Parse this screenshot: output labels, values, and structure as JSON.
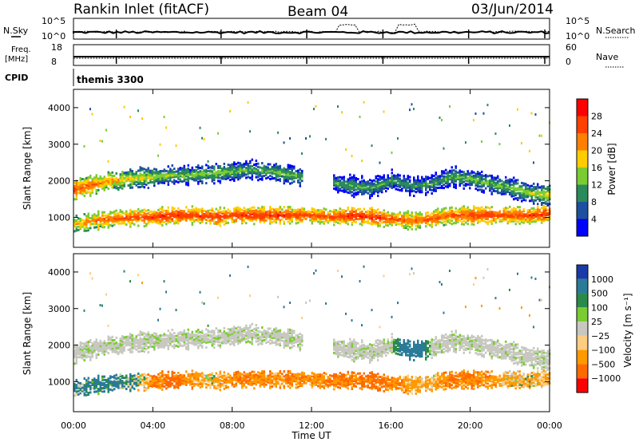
{
  "header": {
    "title": "Rankin Inlet (fitACF)",
    "beam": "Beam 04",
    "date": "03/Jun/2014"
  },
  "strip_top": {
    "left_label": "N.Sky",
    "right_label": "N.Search",
    "left_ticks": [
      "10^5",
      "10^0"
    ],
    "right_ticks": [
      "10^5",
      "10^0"
    ]
  },
  "strip_mid": {
    "left_label_1": "Freq.",
    "left_label_2": "[MHz]",
    "right_label": "Nave",
    "left_ticks": [
      "18",
      "8"
    ],
    "right_ticks": [
      "60",
      "0"
    ]
  },
  "cpid": {
    "label": "CPID",
    "value": "themis 3300"
  },
  "colors": {
    "power_scale": [
      "#0000ff",
      "#1e50a0",
      "#2a8a5a",
      "#7acc33",
      "#ffcc00",
      "#ff8000",
      "#ff4000",
      "#ff0000"
    ],
    "velocity_scale": [
      "#1a3aa8",
      "#2a7a98",
      "#2a8a4a",
      "#7acc33",
      "#c8c8c0",
      "#ffcc80",
      "#ff9900",
      "#ff6a00",
      "#ff0000"
    ]
  },
  "chart_data": [
    {
      "type": "heatmap",
      "panel": "power",
      "ylabel": "Slant Range [km]",
      "yticks": [
        "1000",
        "2000",
        "3000",
        "4000"
      ],
      "ylim": [
        180,
        4500
      ],
      "xlim_hours": [
        0,
        24
      ],
      "colorbar": {
        "label": "Power [dB]",
        "ticks": [
          "4",
          "8",
          "12",
          "16",
          "20",
          "24",
          "28"
        ],
        "range": [
          0,
          32
        ]
      },
      "bands": [
        {
          "name": "upper",
          "center_km": [
            1750,
            1900,
            2000,
            2050,
            2100,
            2150,
            2150,
            2200,
            2250,
            2300,
            2250,
            2150,
            2000,
            1950,
            1850,
            1800,
            2000,
            1850,
            1900,
            2100,
            2050,
            1900,
            1800,
            1650,
            1600
          ],
          "power_db": [
            26,
            24,
            21,
            18,
            16,
            15,
            14,
            15,
            14,
            13,
            14,
            14,
            12,
            12,
            13,
            12,
            12,
            11,
            12,
            13,
            14,
            13,
            14,
            16,
            18
          ]
        },
        {
          "name": "lower",
          "center_km": [
            800,
            900,
            950,
            1000,
            1000,
            1050,
            1050,
            1000,
            1050,
            1050,
            1050,
            1050,
            1050,
            1000,
            1050,
            1000,
            950,
            900,
            950,
            1050,
            1050,
            1050,
            1050,
            1050,
            1100
          ],
          "power_db": [
            20,
            24,
            25,
            26,
            27,
            28,
            27,
            28,
            27,
            28,
            28,
            27,
            26,
            26,
            28,
            28,
            26,
            24,
            26,
            25,
            27,
            27,
            26,
            27,
            28
          ]
        }
      ]
    },
    {
      "type": "heatmap",
      "panel": "velocity",
      "ylabel": "Slant Range [km]",
      "xlabel": "Time UT",
      "yticks": [
        "1000",
        "2000",
        "3000",
        "4000"
      ],
      "ylim": [
        180,
        4500
      ],
      "xticks": [
        "00:00",
        "04:00",
        "08:00",
        "12:00",
        "16:00",
        "20:00",
        "00:00"
      ],
      "xlim_hours": [
        0,
        24
      ],
      "colorbar": {
        "label": "Velocity [m s⁻¹]",
        "ticks": [
          "1000",
          "500",
          "100",
          "25",
          "−25",
          "−100",
          "−500",
          "−1000"
        ],
        "range": [
          -1000,
          1000
        ]
      },
      "bands": [
        {
          "name": "upper",
          "center_km": [
            1750,
            1900,
            2000,
            2050,
            2100,
            2150,
            2150,
            2200,
            2250,
            2300,
            2250,
            2150,
            2000,
            1950,
            1850,
            1800,
            2000,
            1850,
            1900,
            2100,
            2050,
            1900,
            1800,
            1650,
            1600
          ],
          "velocity": [
            0,
            0,
            0,
            0,
            0,
            0,
            0,
            0,
            0,
            0,
            0,
            0,
            0,
            0,
            0,
            0,
            0,
            300,
            0,
            0,
            0,
            0,
            0,
            0,
            0
          ]
        },
        {
          "name": "lower",
          "center_km": [
            800,
            900,
            950,
            1000,
            1000,
            1050,
            1050,
            1000,
            1050,
            1050,
            1050,
            1050,
            1050,
            1000,
            1050,
            1000,
            950,
            900,
            950,
            1050,
            1050,
            1050,
            1050,
            1050,
            1100
          ],
          "velocity": [
            100,
            150,
            120,
            100,
            -300,
            -400,
            -200,
            -100,
            -250,
            -300,
            -200,
            -250,
            -200,
            -300,
            -350,
            -400,
            -300,
            -150,
            -100,
            -300,
            -250,
            -200,
            -100,
            -100,
            -150
          ]
        }
      ]
    }
  ]
}
